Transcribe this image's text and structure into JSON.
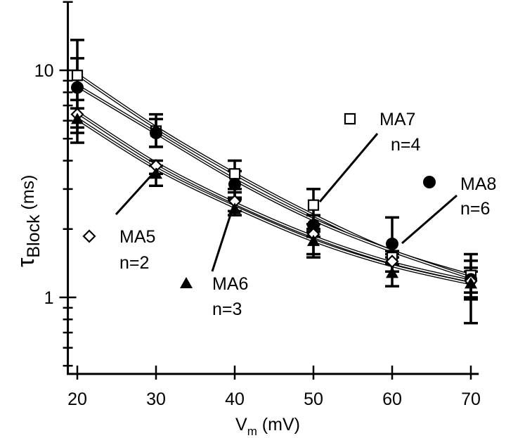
{
  "chart_data": {
    "type": "scatter",
    "xlabel_main": "V",
    "xlabel_sub": "m",
    "xlabel_unit": " (mV)",
    "ylabel_main": "τ",
    "ylabel_sub": "Block",
    "ylabel_unit": " (ms)",
    "xlim": [
      18.8,
      71
    ],
    "ylim": [
      0.46,
      20
    ],
    "yscale": "log",
    "grid": false,
    "x_ticks": [
      20,
      30,
      40,
      50,
      60,
      70
    ],
    "x_tick_labels": [
      "20",
      "30",
      "40",
      "50",
      "60",
      "70"
    ],
    "y_major_ticks": [
      1,
      10
    ],
    "y_tick_labels": [
      "1",
      "10"
    ],
    "y_minor_ticks": [
      0.5,
      0.6,
      0.7,
      0.8,
      0.9,
      2,
      3,
      4,
      5,
      6,
      7,
      8,
      9,
      20
    ],
    "x": [
      20,
      30,
      40,
      50,
      60,
      70
    ],
    "series": [
      {
        "name": "MA7",
        "n_label": "n=4",
        "marker": "open-square",
        "values": [
          9.5,
          5.4,
          3.5,
          2.55,
          1.5,
          1.25
        ],
        "err_hi": [
          13.6,
          6.4,
          4.0,
          3.0,
          1.6,
          1.55
        ],
        "err_lo": [
          7.4,
          4.6,
          3.0,
          2.1,
          1.4,
          0.98
        ],
        "fit": [
          9.4,
          5.6,
          3.5,
          2.3,
          1.6,
          1.25
        ]
      },
      {
        "name": "MA8",
        "n_label": "n=6",
        "marker": "filled-circle",
        "values": [
          8.4,
          5.3,
          3.15,
          2.08,
          1.72,
          1.2
        ],
        "err_hi": [
          11.3,
          6.1,
          3.6,
          2.3,
          2.25,
          1.45
        ],
        "err_lo": [
          5.6,
          4.6,
          2.75,
          1.85,
          1.55,
          0.77
        ],
        "fit": [
          8.4,
          5.3,
          3.3,
          2.2,
          1.6,
          1.22
        ]
      },
      {
        "name": "MA5",
        "n_label": "n=2",
        "marker": "open-diamond",
        "values": [
          6.4,
          3.8,
          2.65,
          1.9,
          1.44,
          1.18
        ],
        "err_hi": [
          7.4,
          4.0,
          2.9,
          2.0,
          1.5,
          1.35
        ],
        "err_lo": [
          5.3,
          3.5,
          2.4,
          1.55,
          1.3,
          1.05
        ],
        "fit": [
          6.4,
          3.9,
          2.6,
          1.85,
          1.42,
          1.18
        ]
      },
      {
        "name": "MA6",
        "n_label": "n=3",
        "marker": "filled-triangle",
        "values": [
          6.1,
          3.5,
          2.45,
          1.77,
          1.28,
          1.15
        ],
        "err_hi": [
          6.8,
          3.8,
          2.7,
          1.95,
          1.4,
          1.3
        ],
        "err_lo": [
          4.8,
          3.1,
          2.3,
          1.5,
          1.12,
          1.0
        ],
        "fit": [
          6.0,
          3.7,
          2.5,
          1.78,
          1.38,
          1.15
        ]
      }
    ]
  }
}
